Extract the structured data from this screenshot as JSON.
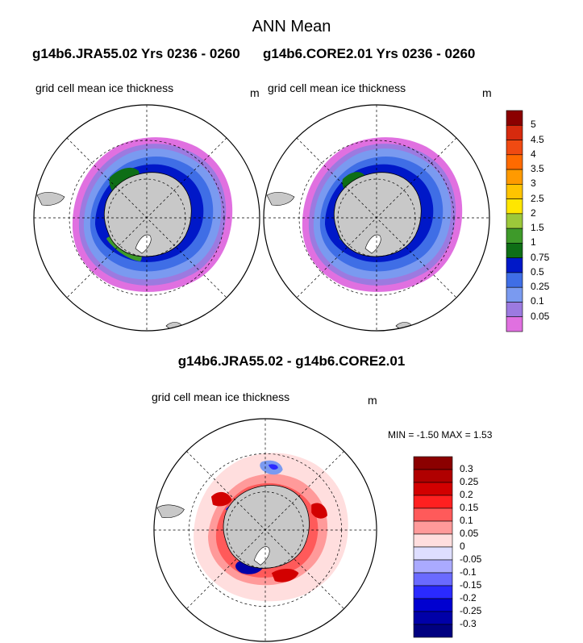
{
  "page": {
    "title": "ANN Mean",
    "case_left": "g14b6.JRA55.02  Yrs 0236 - 0260",
    "case_right": "g14b6.CORE2.01  Yrs 0236 - 0260",
    "diff_title": "g14b6.JRA55.02 - g14b6.CORE2.01"
  },
  "maps": {
    "left": {
      "variable": "grid cell mean ice thickness",
      "units": "m"
    },
    "right": {
      "variable": "grid cell mean ice thickness",
      "units": "m"
    },
    "diff": {
      "variable": "grid cell mean ice thickness",
      "units": "m",
      "stats": "MIN =  -1.50 MAX =   1.53"
    }
  },
  "legends": {
    "thickness": {
      "labels": [
        "5",
        "4.5",
        "4",
        "3.5",
        "3",
        "2.5",
        "2",
        "1.5",
        "1",
        "0.75",
        "0.5",
        "0.25",
        "0.1",
        "0.05"
      ],
      "colors": [
        "#8b0000",
        "#d62a0e",
        "#f04a12",
        "#ff6a00",
        "#ff9a00",
        "#ffc400",
        "#ffe600",
        "#9cc83a",
        "#3e9a2a",
        "#0e6e16",
        "#0018c8",
        "#3f6ee6",
        "#7a9af0",
        "#9c7ae0",
        "#e070e0"
      ]
    },
    "difference": {
      "labels": [
        "0.3",
        "0.25",
        "0.2",
        "0.15",
        "0.1",
        "0.05",
        "0",
        "-0.05",
        "-0.1",
        "-0.15",
        "-0.2",
        "-0.25",
        "-0.3"
      ],
      "colors": [
        "#8b0000",
        "#b00000",
        "#d20000",
        "#ff2020",
        "#ff5a5a",
        "#ff9a9a",
        "#ffdede",
        "#dedeff",
        "#aaaaff",
        "#6a6aff",
        "#2a2aff",
        "#0000d0",
        "#0000a8",
        "#000080"
      ]
    }
  }
}
